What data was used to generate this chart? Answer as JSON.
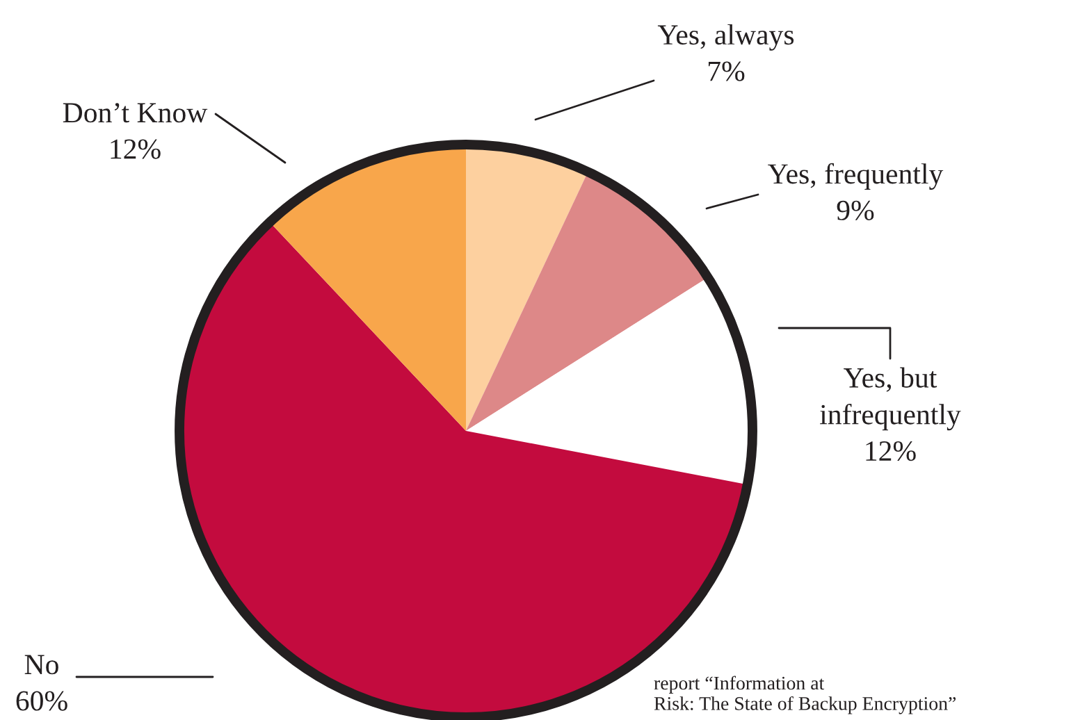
{
  "chart_data": {
    "type": "pie",
    "categories": [
      "Yes, always",
      "Yes, frequently",
      "Yes, but\ninfrequently",
      "No",
      "Don’t Know"
    ],
    "values": [
      7,
      9,
      12,
      60,
      12
    ],
    "value_labels": [
      "7%",
      "9%",
      "12%",
      "60%",
      "12%"
    ],
    "colors": [
      "#fdd09f",
      "#dd8888",
      "#ffffff",
      "#c30b3e",
      "#f8a64b"
    ],
    "annotations": [
      "report “Information at\nRisk: The State of Backup Encryption”"
    ]
  }
}
